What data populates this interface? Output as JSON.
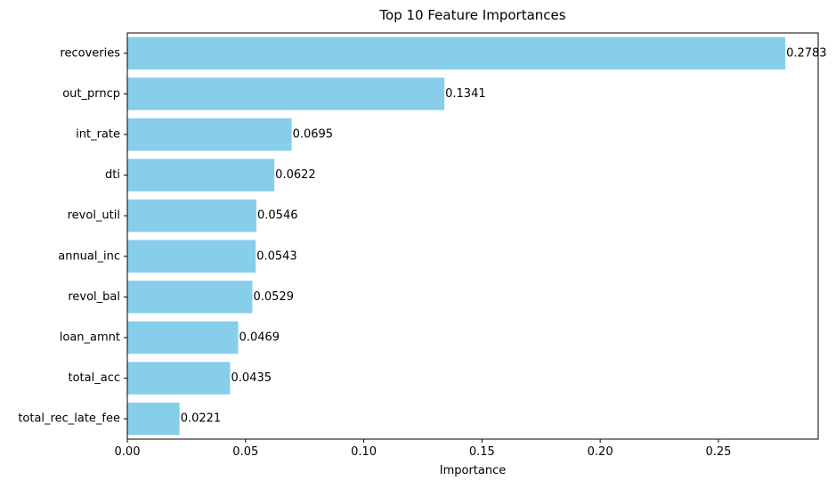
{
  "chart_data": {
    "type": "bar",
    "orientation": "horizontal",
    "title": "Top 10 Feature Importances",
    "xlabel": "Importance",
    "ylabel": "",
    "categories": [
      "recoveries",
      "out_prncp",
      "int_rate",
      "dti",
      "revol_util",
      "annual_inc",
      "revol_bal",
      "loan_amnt",
      "total_acc",
      "total_rec_late_fee"
    ],
    "values": [
      0.2783,
      0.1341,
      0.0695,
      0.0622,
      0.0546,
      0.0543,
      0.0529,
      0.0469,
      0.0435,
      0.0221
    ],
    "value_labels": [
      "0.2783",
      "0.1341",
      "0.0695",
      "0.0622",
      "0.0546",
      "0.0543",
      "0.0529",
      "0.0469",
      "0.0435",
      "0.0221"
    ],
    "xticks": [
      0,
      0.05,
      0.1,
      0.15,
      0.2,
      0.25
    ],
    "xtick_labels": [
      "0.00",
      "0.05",
      "0.10",
      "0.15",
      "0.20",
      "0.25"
    ],
    "xlim": [
      0,
      0.2922
    ],
    "grid": false,
    "legend": "none",
    "bar_color": "#87CEEB"
  }
}
